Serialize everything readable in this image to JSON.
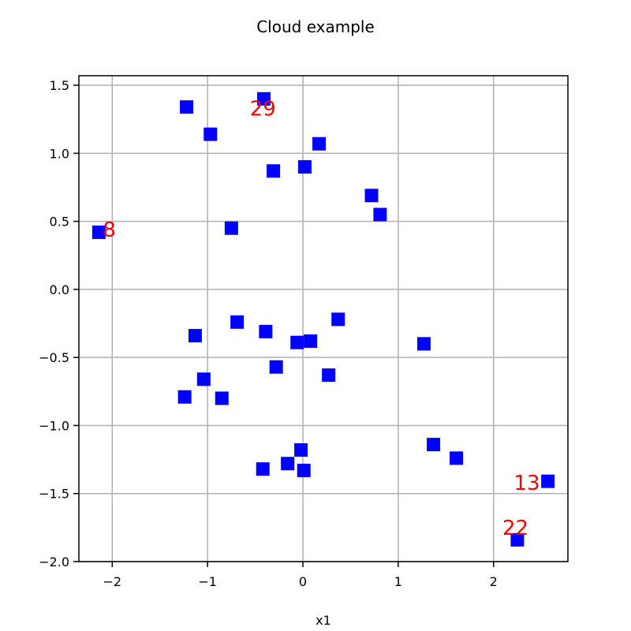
{
  "chart_data": {
    "type": "scatter",
    "title": "Cloud example",
    "xlabel": "x1",
    "ylabel": "",
    "xlim": [
      -2.35,
      2.78
    ],
    "ylim": [
      -2.0,
      1.57
    ],
    "xticks": [
      -2,
      -1,
      0,
      1,
      2
    ],
    "xtick_labels": [
      "−2",
      "−1",
      "0",
      "1",
      "2"
    ],
    "yticks": [
      -2.0,
      -1.5,
      -1.0,
      -0.5,
      0.0,
      0.5,
      1.0,
      1.5
    ],
    "ytick_labels": [
      "−2.0",
      "−1.5",
      "−1.0",
      "−0.5",
      "0.0",
      "0.5",
      "1.0",
      "1.5"
    ],
    "grid": true,
    "marker": "square",
    "marker_color": "#0000ff",
    "annotation_color": "#ff0000",
    "points": [
      {
        "x": -1.22,
        "y": 1.34
      },
      {
        "x": -0.41,
        "y": 1.4
      },
      {
        "x": -0.97,
        "y": 1.14
      },
      {
        "x": 0.17,
        "y": 1.07
      },
      {
        "x": -0.31,
        "y": 0.87
      },
      {
        "x": 0.02,
        "y": 0.9
      },
      {
        "x": 0.72,
        "y": 0.69
      },
      {
        "x": 0.81,
        "y": 0.55
      },
      {
        "x": -2.14,
        "y": 0.42
      },
      {
        "x": -0.75,
        "y": 0.45
      },
      {
        "x": 0.37,
        "y": -0.22
      },
      {
        "x": -0.69,
        "y": -0.24
      },
      {
        "x": -0.39,
        "y": -0.31
      },
      {
        "x": -1.13,
        "y": -0.34
      },
      {
        "x": -0.06,
        "y": -0.39
      },
      {
        "x": 0.08,
        "y": -0.38
      },
      {
        "x": 1.27,
        "y": -0.4
      },
      {
        "x": -0.28,
        "y": -0.57
      },
      {
        "x": 0.27,
        "y": -0.63
      },
      {
        "x": -1.04,
        "y": -0.66
      },
      {
        "x": -1.24,
        "y": -0.79
      },
      {
        "x": -0.85,
        "y": -0.8
      },
      {
        "x": 1.37,
        "y": -1.14
      },
      {
        "x": -0.02,
        "y": -1.18
      },
      {
        "x": 1.61,
        "y": -1.24
      },
      {
        "x": -0.16,
        "y": -1.28
      },
      {
        "x": -0.42,
        "y": -1.32
      },
      {
        "x": 0.01,
        "y": -1.33
      },
      {
        "x": 2.57,
        "y": -1.41
      },
      {
        "x": 2.25,
        "y": -1.84
      }
    ],
    "annotations": [
      {
        "text": "29",
        "x": -0.42,
        "y": 1.32
      },
      {
        "text": "8",
        "x": -2.03,
        "y": 0.43
      },
      {
        "text": "13",
        "x": 2.35,
        "y": -1.43
      },
      {
        "text": "22",
        "x": 2.23,
        "y": -1.76
      }
    ]
  }
}
